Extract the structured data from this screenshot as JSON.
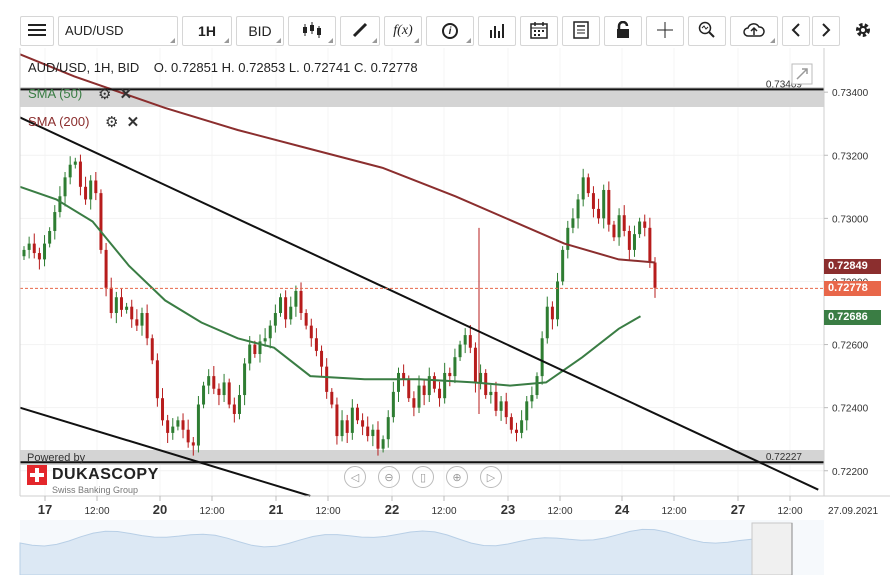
{
  "toolbar": {
    "symbol": "AUD/USD",
    "timeframe": "1H",
    "side": "BID",
    "function_label": "f(x)",
    "info_label": "i"
  },
  "ohlc": {
    "instrument": "AUD/USD, 1H, BID",
    "open": "O. 0.72851",
    "high": "H. 0.72853",
    "low": "L. 0.72741",
    "close": "C. 0.72778"
  },
  "indicators": [
    {
      "label": "SMA (50)",
      "color": "#3a7d44"
    },
    {
      "label": "SMA (200)",
      "color": "#8b2e2e"
    }
  ],
  "logo": {
    "powered_by": "Powered by",
    "brand": "DUKASCOPY",
    "tagline": "Swiss Banking Group"
  },
  "chart_data": {
    "type": "candlestick",
    "x_tick_labels": [
      "17",
      "12:00",
      "20",
      "12:00",
      "21",
      "12:00",
      "22",
      "12:00",
      "23",
      "12:00",
      "24",
      "12:00",
      "27",
      "12:00",
      "27.09.2021"
    ],
    "y_tick_labels": [
      "0.72200",
      "0.72400",
      "0.72600",
      "0.72800",
      "0.73000",
      "0.73200",
      "0.73400"
    ],
    "y_ticks": [
      0.722,
      0.724,
      0.726,
      0.728,
      0.73,
      0.732,
      0.734
    ],
    "ylim": [
      0.7212,
      0.7354
    ],
    "horizontal_lines": [
      {
        "label": "0.73409",
        "value": 0.73409
      },
      {
        "label": "0.72227",
        "value": 0.72227
      }
    ],
    "price_badges": [
      {
        "label": "0.72849",
        "value": 0.72849,
        "color": "#8b2e2e"
      },
      {
        "label": "0.72778",
        "value": 0.72778,
        "color": "#e8674a"
      },
      {
        "label": "0.72686",
        "value": 0.72686,
        "color": "#3a7d44"
      }
    ],
    "current_price": 0.72778,
    "series": [
      {
        "name": "SMA (200)",
        "color": "#8b2e2e",
        "points": [
          [
            0,
            0.7352
          ],
          [
            15,
            0.7345
          ],
          [
            40,
            0.7335
          ],
          [
            60,
            0.7328
          ],
          [
            80,
            0.7322
          ],
          [
            100,
            0.7316
          ],
          [
            120,
            0.7307
          ],
          [
            140,
            0.7297
          ],
          [
            150,
            0.7292
          ],
          [
            165,
            0.7287
          ],
          [
            175,
            0.7286
          ]
        ]
      },
      {
        "name": "SMA (50)",
        "color": "#3a7d44",
        "points": [
          [
            0,
            0.731
          ],
          [
            10,
            0.7306
          ],
          [
            20,
            0.7299
          ],
          [
            30,
            0.7285
          ],
          [
            40,
            0.7274
          ],
          [
            50,
            0.7267
          ],
          [
            60,
            0.7262
          ],
          [
            70,
            0.7259
          ],
          [
            80,
            0.725
          ],
          [
            95,
            0.7249
          ],
          [
            110,
            0.7249
          ],
          [
            125,
            0.7248
          ],
          [
            135,
            0.7247
          ],
          [
            145,
            0.7248
          ],
          [
            155,
            0.7256
          ],
          [
            165,
            0.7265
          ],
          [
            171,
            0.7269
          ]
        ]
      }
    ],
    "trendlines": [
      {
        "points": [
          [
            0,
            0.7332
          ],
          [
            220,
            0.7214
          ]
        ]
      },
      {
        "points": [
          [
            0,
            0.724
          ],
          [
            80,
            0.7212
          ]
        ]
      }
    ]
  }
}
